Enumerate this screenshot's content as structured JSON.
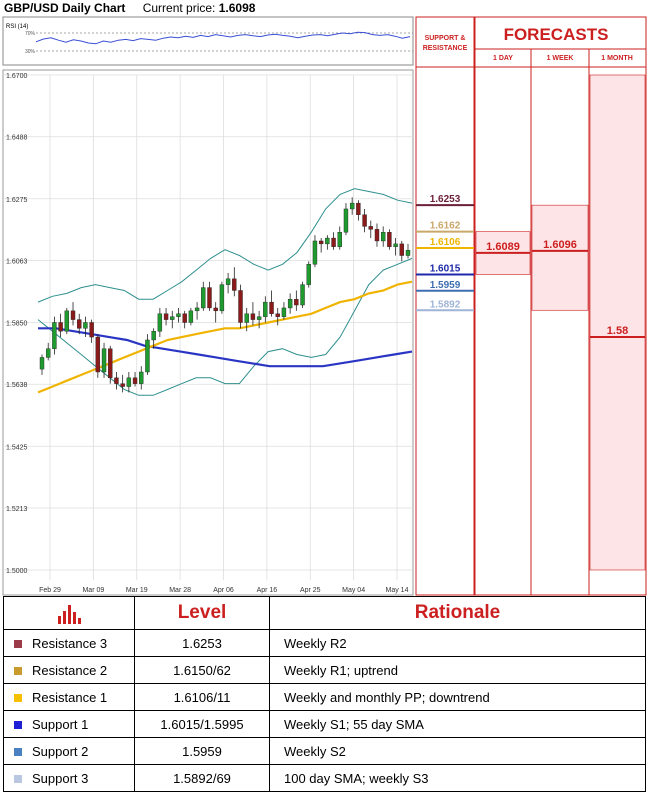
{
  "header": {
    "title": "GBP/USD Daily Chart",
    "price_label": "Current price:",
    "price_value": "1.6098"
  },
  "panel": {
    "sr_title_line1": "SUPPORT &",
    "sr_title_line2": "RESISTANCE",
    "forecasts_title": "FORECASTS",
    "col_1day": "1 DAY",
    "col_1week": "1 WEEK",
    "col_1month": "1 MONTH",
    "levels": [
      {
        "label": "1.6253",
        "value": 1.6253,
        "color": "#6b1f3a"
      },
      {
        "label": "1.6162",
        "value": 1.6162,
        "color": "#c9a86a"
      },
      {
        "label": "1.6106",
        "value": 1.6106,
        "color": "#f0b400"
      },
      {
        "label": "1.6015",
        "value": 1.6015,
        "color": "#1e2aa8"
      },
      {
        "label": "1.5959",
        "value": 1.5959,
        "color": "#3e6fb0"
      },
      {
        "label": "1.5892",
        "value": 1.5892,
        "color": "#9fb4d6"
      }
    ],
    "forecasts": [
      {
        "label": "1.6089",
        "value": 1.6089,
        "low": 1.6015,
        "high": 1.6162
      },
      {
        "label": "1.6096",
        "value": 1.6096,
        "low": 1.5892,
        "high": 1.6253
      },
      {
        "label": "1.58",
        "value": 1.58,
        "low": 1.5,
        "high": 1.67
      }
    ]
  },
  "rsi": {
    "label": "RSI (14)",
    "levels": [
      "70%",
      "30%"
    ],
    "values": [
      48,
      55,
      58,
      52,
      47,
      53,
      50,
      45,
      43,
      50,
      47,
      52,
      54,
      51,
      56,
      54,
      52,
      57,
      60,
      58,
      62,
      59,
      64,
      61,
      66,
      63,
      60,
      64,
      66,
      63,
      61,
      65,
      67,
      64,
      62,
      58,
      62,
      65,
      66,
      63,
      67,
      70,
      68,
      72,
      71,
      66,
      64,
      66,
      62,
      57,
      61
    ]
  },
  "chart_data": {
    "type": "candlestick",
    "ylim": [
      1.5,
      1.67
    ],
    "y_ticks": [
      "1.6700",
      "1.6488",
      "1.6275",
      "1.6063",
      "1.5850",
      "1.5638",
      "1.5425",
      "1.5213",
      "1.5000"
    ],
    "x_ticks": [
      "Feb 29",
      "Mar 09",
      "Mar 19",
      "Mar 28",
      "Apr 06",
      "Apr 16",
      "Apr 25",
      "May 04",
      "May 14"
    ],
    "candles": [
      [
        1.569,
        1.574,
        1.567,
        1.573
      ],
      [
        1.573,
        1.578,
        1.572,
        1.576
      ],
      [
        1.576,
        1.587,
        1.574,
        1.585
      ],
      [
        1.585,
        1.588,
        1.58,
        1.582
      ],
      [
        1.582,
        1.59,
        1.581,
        1.589
      ],
      [
        1.589,
        1.592,
        1.584,
        1.586
      ],
      [
        1.586,
        1.588,
        1.581,
        1.583
      ],
      [
        1.583,
        1.587,
        1.58,
        1.585
      ],
      [
        1.585,
        1.586,
        1.578,
        1.58
      ],
      [
        1.58,
        1.581,
        1.566,
        1.568
      ],
      [
        1.568,
        1.578,
        1.566,
        1.576
      ],
      [
        1.576,
        1.577,
        1.564,
        1.566
      ],
      [
        1.566,
        1.568,
        1.562,
        1.564
      ],
      [
        1.564,
        1.567,
        1.561,
        1.563
      ],
      [
        1.563,
        1.568,
        1.561,
        1.566
      ],
      [
        1.566,
        1.568,
        1.563,
        1.564
      ],
      [
        1.564,
        1.57,
        1.562,
        1.568
      ],
      [
        1.568,
        1.581,
        1.567,
        1.579
      ],
      [
        1.579,
        1.583,
        1.576,
        1.582
      ],
      [
        1.582,
        1.59,
        1.58,
        1.588
      ],
      [
        1.588,
        1.59,
        1.584,
        1.586
      ],
      [
        1.586,
        1.589,
        1.583,
        1.587
      ],
      [
        1.587,
        1.59,
        1.585,
        1.588
      ],
      [
        1.588,
        1.589,
        1.583,
        1.585
      ],
      [
        1.585,
        1.59,
        1.584,
        1.589
      ],
      [
        1.589,
        1.592,
        1.586,
        1.59
      ],
      [
        1.59,
        1.599,
        1.589,
        1.597
      ],
      [
        1.597,
        1.599,
        1.589,
        1.59
      ],
      [
        1.59,
        1.592,
        1.585,
        1.589
      ],
      [
        1.589,
        1.599,
        1.588,
        1.598
      ],
      [
        1.598,
        1.602,
        1.595,
        1.6
      ],
      [
        1.6,
        1.604,
        1.594,
        1.596
      ],
      [
        1.596,
        1.598,
        1.583,
        1.585
      ],
      [
        1.585,
        1.59,
        1.582,
        1.588
      ],
      [
        1.588,
        1.592,
        1.584,
        1.586
      ],
      [
        1.586,
        1.589,
        1.583,
        1.587
      ],
      [
        1.587,
        1.594,
        1.585,
        1.592
      ],
      [
        1.592,
        1.596,
        1.587,
        1.588
      ],
      [
        1.588,
        1.59,
        1.584,
        1.587
      ],
      [
        1.587,
        1.592,
        1.586,
        1.59
      ],
      [
        1.59,
        1.595,
        1.588,
        1.593
      ],
      [
        1.593,
        1.596,
        1.589,
        1.591
      ],
      [
        1.591,
        1.599,
        1.59,
        1.598
      ],
      [
        1.598,
        1.606,
        1.597,
        1.605
      ],
      [
        1.605,
        1.615,
        1.604,
        1.613
      ],
      [
        1.613,
        1.614,
        1.609,
        1.612
      ],
      [
        1.612,
        1.615,
        1.61,
        1.614
      ],
      [
        1.614,
        1.616,
        1.61,
        1.611
      ],
      [
        1.611,
        1.618,
        1.61,
        1.616
      ],
      [
        1.616,
        1.626,
        1.615,
        1.624
      ],
      [
        1.624,
        1.628,
        1.622,
        1.626
      ],
      [
        1.626,
        1.627,
        1.62,
        1.622
      ],
      [
        1.622,
        1.624,
        1.616,
        1.618
      ],
      [
        1.618,
        1.62,
        1.614,
        1.617
      ],
      [
        1.617,
        1.619,
        1.611,
        1.613
      ],
      [
        1.613,
        1.618,
        1.611,
        1.616
      ],
      [
        1.616,
        1.617,
        1.61,
        1.611
      ],
      [
        1.611,
        1.614,
        1.608,
        1.612
      ],
      [
        1.612,
        1.613,
        1.606,
        1.608
      ],
      [
        1.608,
        1.612,
        1.607,
        1.6098
      ]
    ],
    "bb_upper": [
      1.592,
      1.594,
      1.595,
      1.597,
      1.598,
      1.597,
      1.596,
      1.593,
      1.593,
      1.596,
      1.599,
      1.603,
      1.607,
      1.61,
      1.608,
      1.605,
      1.603,
      1.605,
      1.609,
      1.616,
      1.624,
      1.629,
      1.631,
      1.63,
      1.629,
      1.627,
      1.626
    ],
    "bb_lower": [
      1.586,
      1.582,
      1.578,
      1.574,
      1.57,
      1.566,
      1.562,
      1.56,
      1.56,
      1.562,
      1.564,
      1.566,
      1.566,
      1.564,
      1.564,
      1.57,
      1.575,
      1.576,
      1.574,
      1.573,
      1.574,
      1.58,
      1.589,
      1.598,
      1.603,
      1.605,
      1.607
    ],
    "sma55": [
      1.561,
      1.563,
      1.565,
      1.567,
      1.569,
      1.571,
      1.573,
      1.575,
      1.577,
      1.579,
      1.58,
      1.581,
      1.582,
      1.583,
      1.583,
      1.584,
      1.585,
      1.586,
      1.587,
      1.588,
      1.59,
      1.592,
      1.593,
      1.595,
      1.596,
      1.598,
      1.599
    ],
    "sma100": [
      1.583,
      1.583,
      1.582,
      1.581,
      1.58,
      1.579,
      1.577,
      1.576,
      1.575,
      1.574,
      1.573,
      1.572,
      1.571,
      1.57,
      1.57,
      1.57,
      1.57,
      1.571,
      1.572,
      1.573,
      1.574,
      1.575
    ]
  },
  "table": {
    "header_level": "Level",
    "header_rationale": "Rationale",
    "rows": [
      {
        "name": "Resistance 3",
        "level": "1.6253",
        "rationale": "Weekly R2",
        "color": "#9b3a48"
      },
      {
        "name": "Resistance 2",
        "level": "1.6150/62",
        "rationale": "Weekly R1; uptrend",
        "color": "#c99a2e"
      },
      {
        "name": "Resistance 1",
        "level": "1.6106/11",
        "rationale": "Weekly and monthly PP; downtrend",
        "color": "#f5c000"
      },
      {
        "name": "Support 1",
        "level": "1.6015/1.5995",
        "rationale": "Weekly S1; 55 day SMA",
        "color": "#1f1fd6"
      },
      {
        "name": "Support 2",
        "level": "1.5959",
        "rationale": "Weekly S2",
        "color": "#4a7fc1"
      },
      {
        "name": "Support 3",
        "level": "1.5892/69",
        "rationale": "100 day SMA; weekly S3",
        "color": "#b9c7e0"
      }
    ]
  },
  "colors": {
    "bull": "#1f9a2e",
    "bear": "#8b1b1b",
    "bb": "#2f8f8f",
    "sma55": "#f0b400",
    "sma100": "#2a35c4",
    "accent_red": "#cc1f1f",
    "panel_pink": "#fde4e6"
  }
}
